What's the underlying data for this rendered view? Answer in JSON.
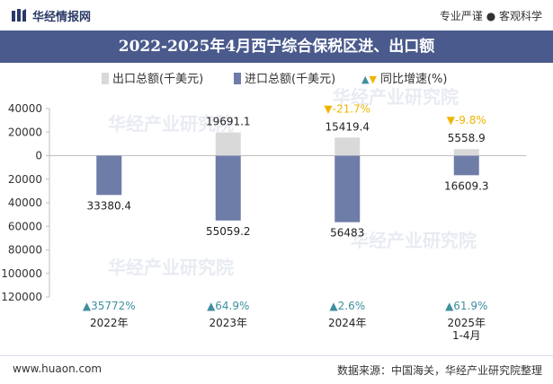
{
  "header": {
    "brand": "华经情报网",
    "tagline": "专业严谨 ● 客观科学"
  },
  "title": "2022-2025年4月西宁综合保税区进、出口额",
  "legend": {
    "export": "出口总额(千美元)",
    "import": "进口总额(千美元)",
    "yoy": "同比增速(%)"
  },
  "colors": {
    "export": "#d9d9d9",
    "import": "#6e7ca8",
    "up": "#3f8f9e",
    "down": "#f0b400",
    "title_bg": "#4a5a8c"
  },
  "watermark": "华经产业研究院",
  "chart_data": {
    "type": "bar",
    "categories": [
      "2022年",
      "2023年",
      "2024年",
      "2025年\n1-4月"
    ],
    "series": [
      {
        "name": "出口总额(千美元)",
        "values": [
          0,
          19691.1,
          15419.4,
          5558.9
        ],
        "labels": [
          "",
          "19691.1",
          "15419.4",
          "5558.9"
        ]
      },
      {
        "name": "进口总额(千美元)",
        "values": [
          -33380.4,
          -55059.2,
          -56483,
          -16609.3
        ],
        "labels": [
          "33380.4",
          "55059.2",
          "56483",
          "16609.3"
        ]
      }
    ],
    "yoy": [
      {
        "label": "35772%",
        "dir": "up"
      },
      {
        "label": "64.9%",
        "dir": "up"
      },
      {
        "label": "2.6%",
        "dir": "up"
      },
      {
        "label": "61.9%",
        "dir": "up"
      }
    ],
    "export_yoy": [
      {
        "label": "",
        "dir": ""
      },
      {
        "label": "",
        "dir": ""
      },
      {
        "label": "-21.7%",
        "dir": "down"
      },
      {
        "label": "-9.8%",
        "dir": "down"
      }
    ],
    "ylim": [
      -120000,
      40000
    ],
    "yticks": [
      40000,
      20000,
      0,
      -20000,
      -40000,
      -60000,
      -80000,
      -100000,
      -120000
    ],
    "ytick_labels": [
      "40000",
      "20000",
      "0",
      "20000",
      "40000",
      "60000",
      "80000",
      "100000",
      "120000"
    ]
  },
  "footer": {
    "website": "www.huaon.com",
    "source": "数据来源：中国海关，华经产业研究院整理"
  }
}
